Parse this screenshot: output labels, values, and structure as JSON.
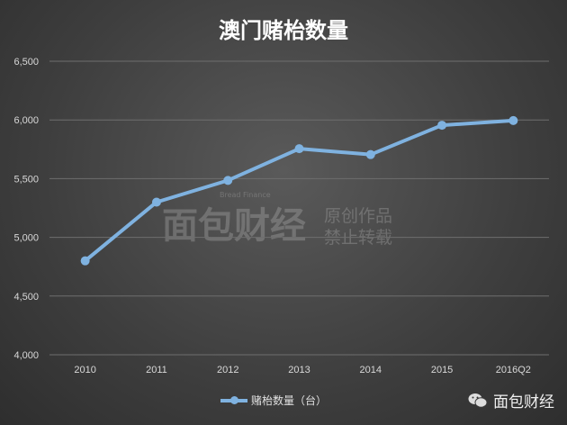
{
  "chart_data": {
    "type": "line",
    "title": "澳门赌枱数量",
    "categories": [
      "2010",
      "2011",
      "2012",
      "2013",
      "2014",
      "2015",
      "2016Q2"
    ],
    "series": [
      {
        "name": "赌枱数量（台）",
        "values": [
          4800,
          5300,
          5485,
          5755,
          5705,
          5955,
          5995
        ],
        "color": "#7fb2e0"
      }
    ],
    "ylim": [
      4000,
      6500
    ],
    "yticks": [
      "4,000",
      "4,500",
      "5,000",
      "5,500",
      "6,000",
      "6,500"
    ],
    "grid": true,
    "legend": "bottom"
  },
  "watermark": {
    "logo": "面包财经",
    "en": "Bread Finance",
    "line1": "原创作品",
    "line2": "禁止转载"
  },
  "brand": {
    "label": "面包财经",
    "icon": "wechat-icon"
  }
}
